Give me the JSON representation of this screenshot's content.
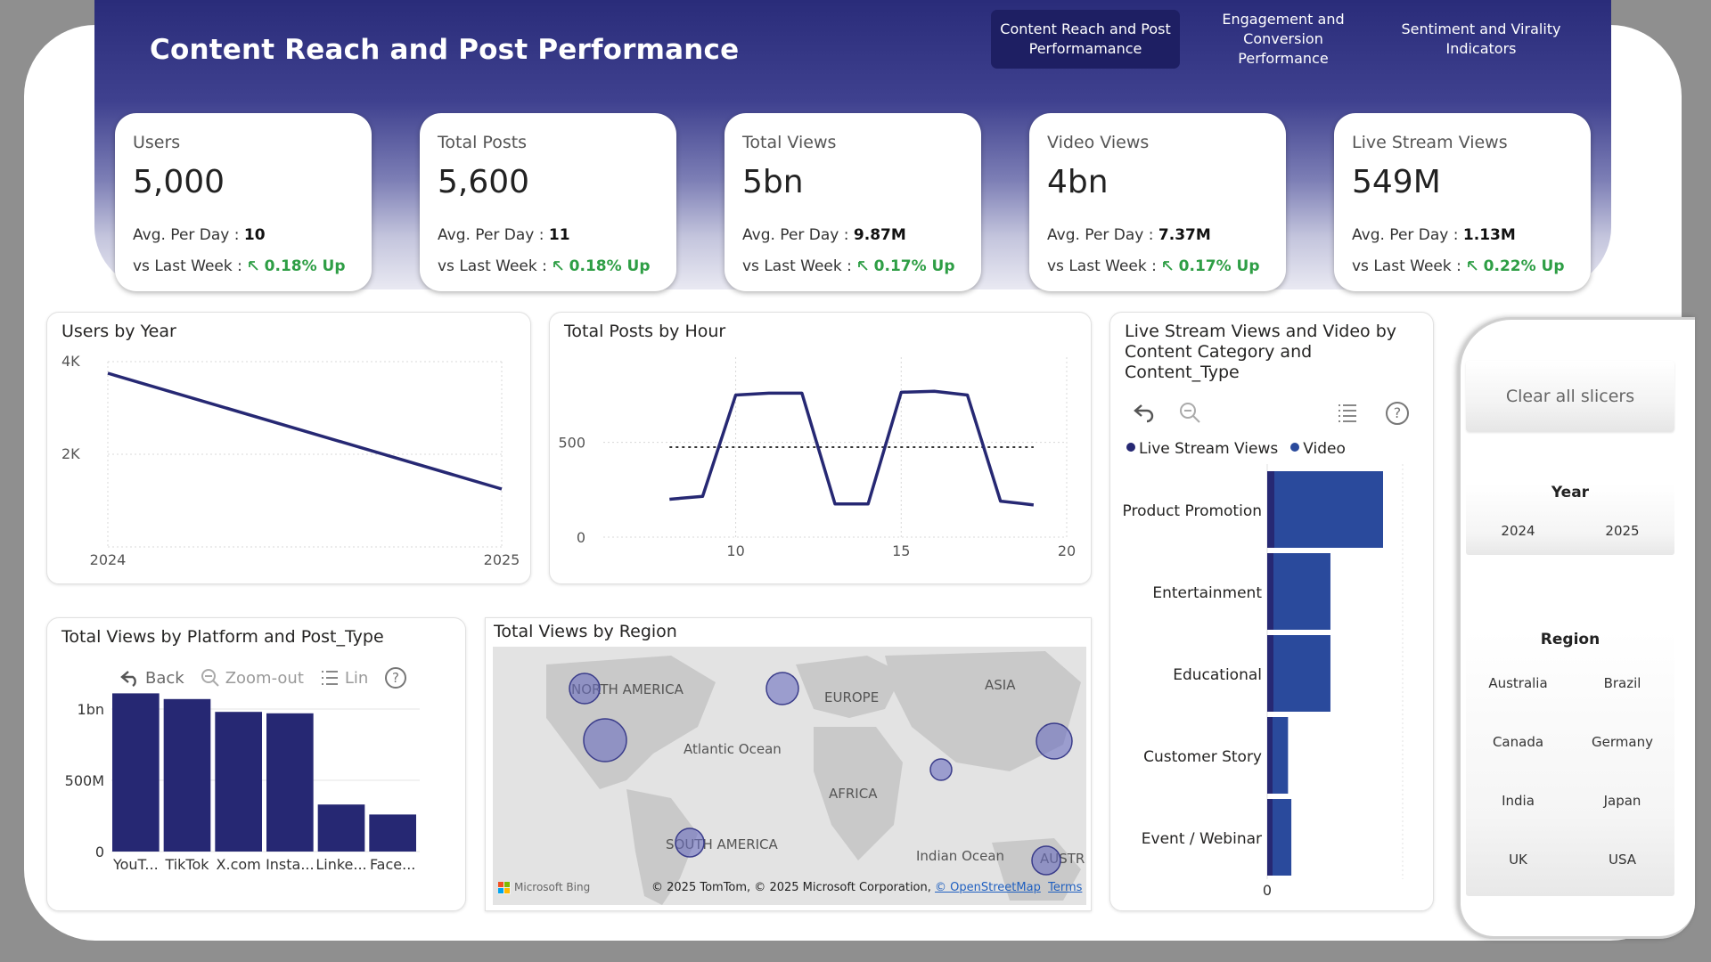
{
  "page": {
    "title": "Content Reach and Post Performance"
  },
  "tabs": [
    {
      "label": "Content Reach and Post Performamance",
      "active": true
    },
    {
      "label": "Engagement and Conversion Performance",
      "active": false
    },
    {
      "label": "Sentiment and Virality Indicators",
      "active": false
    }
  ],
  "kpis": [
    {
      "label": "Users",
      "value": "5,000",
      "avg_label": "Avg. Per Day :",
      "avg": "10",
      "wk_label": "vs Last Week :",
      "change": "0.18% Up"
    },
    {
      "label": "Total Posts",
      "value": "5,600",
      "avg_label": "Avg. Per Day :",
      "avg": "11",
      "wk_label": "vs Last Week :",
      "change": "0.18% Up"
    },
    {
      "label": "Total Views",
      "value": "5bn",
      "avg_label": "Avg. Per Day :",
      "avg": "9.87M",
      "wk_label": "vs Last Week :",
      "change": "0.17% Up"
    },
    {
      "label": "Video Views",
      "value": "4bn",
      "avg_label": "Avg. Per Day :",
      "avg": "7.37M",
      "wk_label": "vs Last Week :",
      "change": "0.17% Up"
    },
    {
      "label": "Live Stream Views",
      "value": "549M",
      "avg_label": "Avg. Per Day :",
      "avg": "1.13M",
      "wk_label": "vs Last Week :",
      "change": "0.22% Up"
    }
  ],
  "colors": {
    "navy": "#262873",
    "bar_blue": "#2a4a9c",
    "up_green": "#2e9e45",
    "bubble": "#6b6ec0"
  },
  "chart_data": [
    {
      "id": "users_by_year",
      "type": "line",
      "title": "Users by Year",
      "x": [
        2024,
        2025
      ],
      "x_ticks": [
        "2024",
        "2025"
      ],
      "y": [
        3750,
        1250
      ],
      "y_ticks": [
        {
          "v": 2000,
          "label": "2K"
        },
        {
          "v": 4000,
          "label": "4K"
        }
      ],
      "ylim": [
        0,
        4000
      ],
      "grid": true
    },
    {
      "id": "posts_by_hour",
      "type": "line",
      "title": "Total Posts by Hour",
      "x": [
        8,
        9,
        10,
        11,
        12,
        13,
        14,
        15,
        16,
        17,
        18,
        19
      ],
      "y": [
        200,
        215,
        750,
        760,
        760,
        175,
        175,
        765,
        770,
        750,
        190,
        170
      ],
      "average": 475,
      "x_ticks": [
        "10",
        "15",
        "20"
      ],
      "y_ticks": [
        "0",
        "500"
      ],
      "xlim": [
        6,
        20
      ],
      "ylim": [
        0,
        950
      ],
      "grid": true
    },
    {
      "id": "views_by_platform",
      "type": "bar",
      "title": "Total Views by Platform and Post_Type",
      "categories": [
        "YouT...",
        "TikTok",
        "X.com",
        "Insta...",
        "Linke...",
        "Face..."
      ],
      "values": [
        1110000000,
        1070000000,
        980000000,
        970000000,
        330000000,
        260000000
      ],
      "y_ticks": [
        "0",
        "500M",
        "1bn"
      ],
      "ylim": [
        0,
        1200000000
      ],
      "toolbar": {
        "back": "Back",
        "zoom": "Zoom-out",
        "list": "Lin"
      }
    },
    {
      "id": "views_by_region",
      "type": "map",
      "title": "Total Views by Region",
      "labels": [
        "NORTH AMERICA",
        "EUROPE",
        "ASIA",
        "Atlantic Ocean",
        "AFRICA",
        "SOUTH AMERICA",
        "Indian Ocean",
        "AUSTR"
      ],
      "attribution": "© 2025 TomTom, © 2025 Microsoft Corporation,",
      "osm": "© OpenStreetMap",
      "terms": "Terms",
      "provider": "Microsoft Bing"
    },
    {
      "id": "livestream_video_by_category",
      "type": "bar",
      "orientation": "horizontal",
      "title": "Live Stream Views and Video by Content Category and Content_Type",
      "categories": [
        "Product Promotion",
        "Entertainment",
        "Educational",
        "Customer Story",
        "Event / Webinar"
      ],
      "series": [
        {
          "name": "Live Stream Views",
          "values": [
            8,
            7,
            7,
            6,
            6
          ]
        },
        {
          "name": "Video",
          "values": [
            100,
            52,
            52,
            14,
            17
          ]
        }
      ],
      "x_ticks": [
        "0"
      ]
    }
  ],
  "slicers": {
    "clear_label": "Clear all slicers",
    "year": {
      "title": "Year",
      "options": [
        "2024",
        "2025"
      ]
    },
    "region": {
      "title": "Region",
      "options": [
        "Australia",
        "Brazil",
        "Canada",
        "Germany",
        "India",
        "Japan",
        "UK",
        "USA"
      ]
    }
  }
}
